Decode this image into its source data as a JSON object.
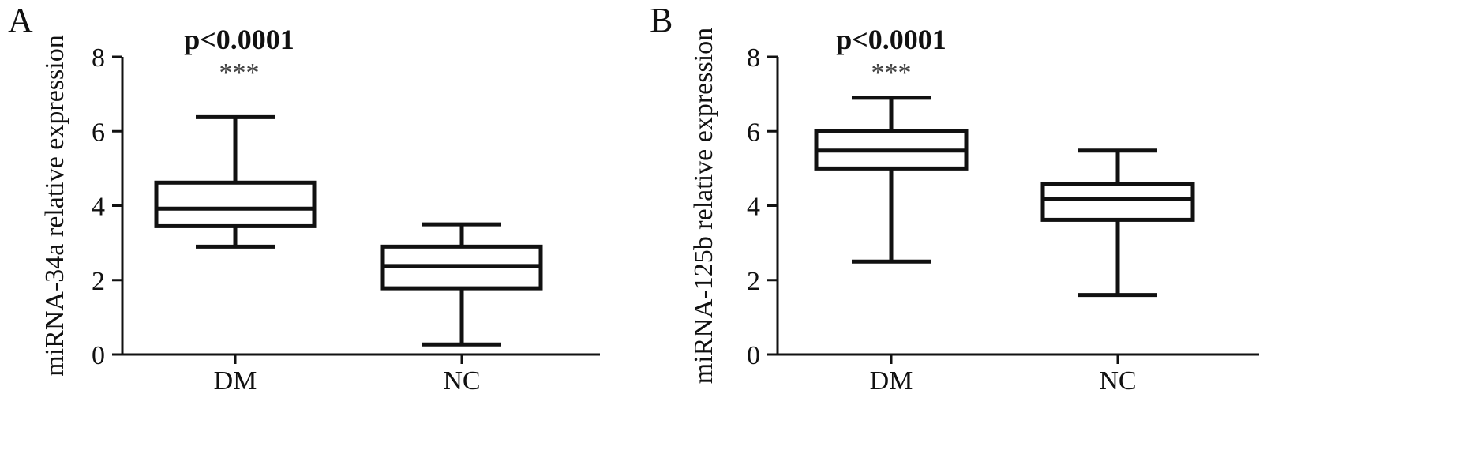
{
  "chart_data": [
    {
      "type": "box",
      "panel_label": "A",
      "ylabel": "miRNA-34a relative expression",
      "xlabel": "",
      "ylim": [
        0,
        8
      ],
      "yticks": [
        0,
        2,
        4,
        6,
        8
      ],
      "annotation": {
        "p_text": "p<0.0001",
        "stars": "***",
        "over_category": "DM"
      },
      "categories": [
        "DM",
        "NC"
      ],
      "boxes": [
        {
          "category": "DM",
          "min": 2.9,
          "q1": 3.45,
          "median": 3.92,
          "q3": 4.62,
          "max": 6.38
        },
        {
          "category": "NC",
          "min": 0.27,
          "q1": 1.78,
          "median": 2.38,
          "q3": 2.9,
          "max": 3.5
        }
      ]
    },
    {
      "type": "box",
      "panel_label": "B",
      "ylabel": "miRNA-125b relative expression",
      "xlabel": "",
      "ylim": [
        0,
        8
      ],
      "yticks": [
        0,
        2,
        4,
        6,
        8
      ],
      "annotation": {
        "p_text": "p<0.0001",
        "stars": "***",
        "over_category": "DM"
      },
      "categories": [
        "DM",
        "NC"
      ],
      "boxes": [
        {
          "category": "DM",
          "min": 2.5,
          "q1": 5.0,
          "median": 5.48,
          "q3": 6.0,
          "max": 6.9
        },
        {
          "category": "NC",
          "min": 1.6,
          "q1": 3.62,
          "median": 4.18,
          "q3": 4.58,
          "max": 5.48
        }
      ]
    }
  ],
  "colors": {
    "ink": "#111111",
    "stars": "#444444",
    "background": "#ffffff"
  }
}
